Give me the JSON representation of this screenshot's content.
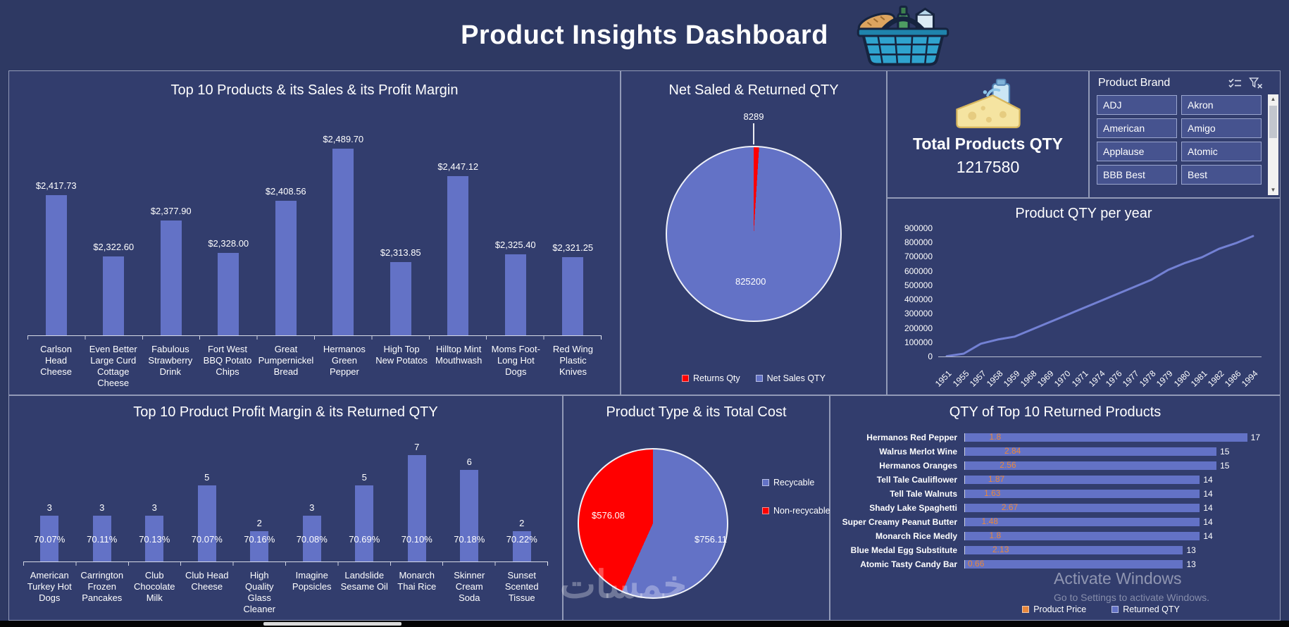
{
  "header": {
    "title": "Product Insights Dashboard"
  },
  "total_qty": {
    "label": "Total Products QTY",
    "value": "1217580"
  },
  "brand_slicer": {
    "title": "Product Brand",
    "items": [
      "ADJ",
      "Akron",
      "American",
      "Amigo",
      "Applause",
      "Atomic",
      "BBB Best",
      "Best"
    ]
  },
  "watermarks": {
    "site": "خمسات",
    "activate_line1": "Activate Windows",
    "activate_line2": "Go to Settings to activate Windows."
  },
  "chart_data": [
    {
      "id": "top_products_sales",
      "type": "bar",
      "title": "Top 10 Products & its Sales & its Profit Margin",
      "categories": [
        "Carlson Head Cheese",
        "Even Better Large Curd Cottage Cheese",
        "Fabulous Strawberry Drink",
        "Fort West BBQ Potato Chips",
        "Great Pumpernickel Bread",
        "Hermanos Green Pepper",
        "High Top New Potatos",
        "Hilltop Mint Mouthwash",
        "Moms Foot-Long Hot Dogs",
        "Red Wing Plastic Knives"
      ],
      "values": [
        2417.73,
        2322.6,
        2377.9,
        2328.0,
        2408.56,
        2489.7,
        2313.85,
        2447.12,
        2325.4,
        2321.25
      ],
      "labels": [
        "$2,417.73",
        "$2,322.60",
        "$2,377.90",
        "$2,328.00",
        "$2,408.56",
        "$2,489.70",
        "$2,313.85",
        "$2,447.12",
        "$2,325.40",
        "$2,321.25"
      ],
      "ylim": [
        2200,
        2520
      ],
      "color": "#6372c6"
    },
    {
      "id": "net_sales_returns",
      "type": "pie",
      "title": "Net Saled & Returned QTY",
      "slices": [
        {
          "label": "Returns Qty",
          "value": 8289,
          "label_text": "8289",
          "color": "#ff0000"
        },
        {
          "label": "Net Sales QTY",
          "value": 825200,
          "label_text": "825200",
          "color": "#6372c6"
        }
      ],
      "legend_position": "bottom"
    },
    {
      "id": "qty_per_year",
      "type": "line",
      "title": "Product QTY per year",
      "x": [
        "1951",
        "1955",
        "1957",
        "1958",
        "1959",
        "1968",
        "1969",
        "1970",
        "1971",
        "1974",
        "1976",
        "1977",
        "1978",
        "1979",
        "1980",
        "1981",
        "1982",
        "1986",
        "1994"
      ],
      "values": [
        2000,
        20000,
        90000,
        120000,
        140000,
        190000,
        240000,
        290000,
        340000,
        390000,
        440000,
        490000,
        540000,
        610000,
        660000,
        700000,
        760000,
        800000,
        850000
      ],
      "ylim": [
        0,
        900000
      ],
      "yticks": [
        "900000",
        "800000",
        "700000",
        "600000",
        "500000",
        "400000",
        "300000",
        "200000",
        "100000",
        "0"
      ],
      "color": "#7381d4"
    },
    {
      "id": "profit_margin_returns",
      "type": "bar",
      "title": "Top 10 Product Profit Margin & its Returned QTY",
      "categories": [
        "American Turkey Hot Dogs",
        "Carrington Frozen Pancakes",
        "Club Chocolate Milk",
        "Club Head Cheese",
        "High Quality Glass Cleaner",
        "Imagine Popsicles",
        "Landslide Sesame Oil",
        "Monarch Thai Rice",
        "Skinner Cream Soda",
        "Sunset Scented Tissue"
      ],
      "values": [
        3,
        3,
        3,
        5,
        2,
        3,
        5,
        7,
        6,
        2
      ],
      "labels": [
        "3",
        "3",
        "3",
        "5",
        "2",
        "3",
        "5",
        "7",
        "6",
        "2"
      ],
      "percent_labels": [
        "70.07%",
        "70.11%",
        "70.13%",
        "70.07%",
        "70.16%",
        "70.08%",
        "70.69%",
        "70.10%",
        "70.18%",
        "70.22%"
      ],
      "ylim": [
        0,
        8
      ],
      "color": "#6372c6"
    },
    {
      "id": "type_cost",
      "type": "pie",
      "title": "Product Type & its Total Cost",
      "slices": [
        {
          "label": "Recycable",
          "value": 756.11,
          "label_text": "$756.11",
          "color": "#6372c6"
        },
        {
          "label": "Non-recycable",
          "value": 576.08,
          "label_text": "$576.08",
          "color": "#ff0000"
        }
      ],
      "legend_position": "right"
    },
    {
      "id": "returned_products",
      "type": "hbar",
      "title": "QTY of Top 10 Returned Products",
      "categories": [
        "Hermanos Red Pepper",
        "Walrus Merlot Wine",
        "Hermanos Oranges",
        "Tell Tale Cauliflower",
        "Tell Tale Walnuts",
        "Shady Lake Spaghetti",
        "Super Creamy Peanut Butter",
        "Monarch Rice Medly",
        "Blue Medal Egg Substitute",
        "Atomic Tasty Candy Bar"
      ],
      "series": [
        {
          "name": "Product Price",
          "values": [
            1.8,
            2.84,
            2.56,
            1.87,
            1.63,
            2.67,
            1.48,
            1.8,
            2.13,
            0.66
          ],
          "color": "#e8873c"
        },
        {
          "name": "Returned QTY",
          "values": [
            17,
            15,
            15,
            14,
            14,
            14,
            14,
            14,
            13,
            13
          ],
          "color": "#6372c6"
        }
      ],
      "xlim": [
        0,
        17.6
      ]
    }
  ]
}
